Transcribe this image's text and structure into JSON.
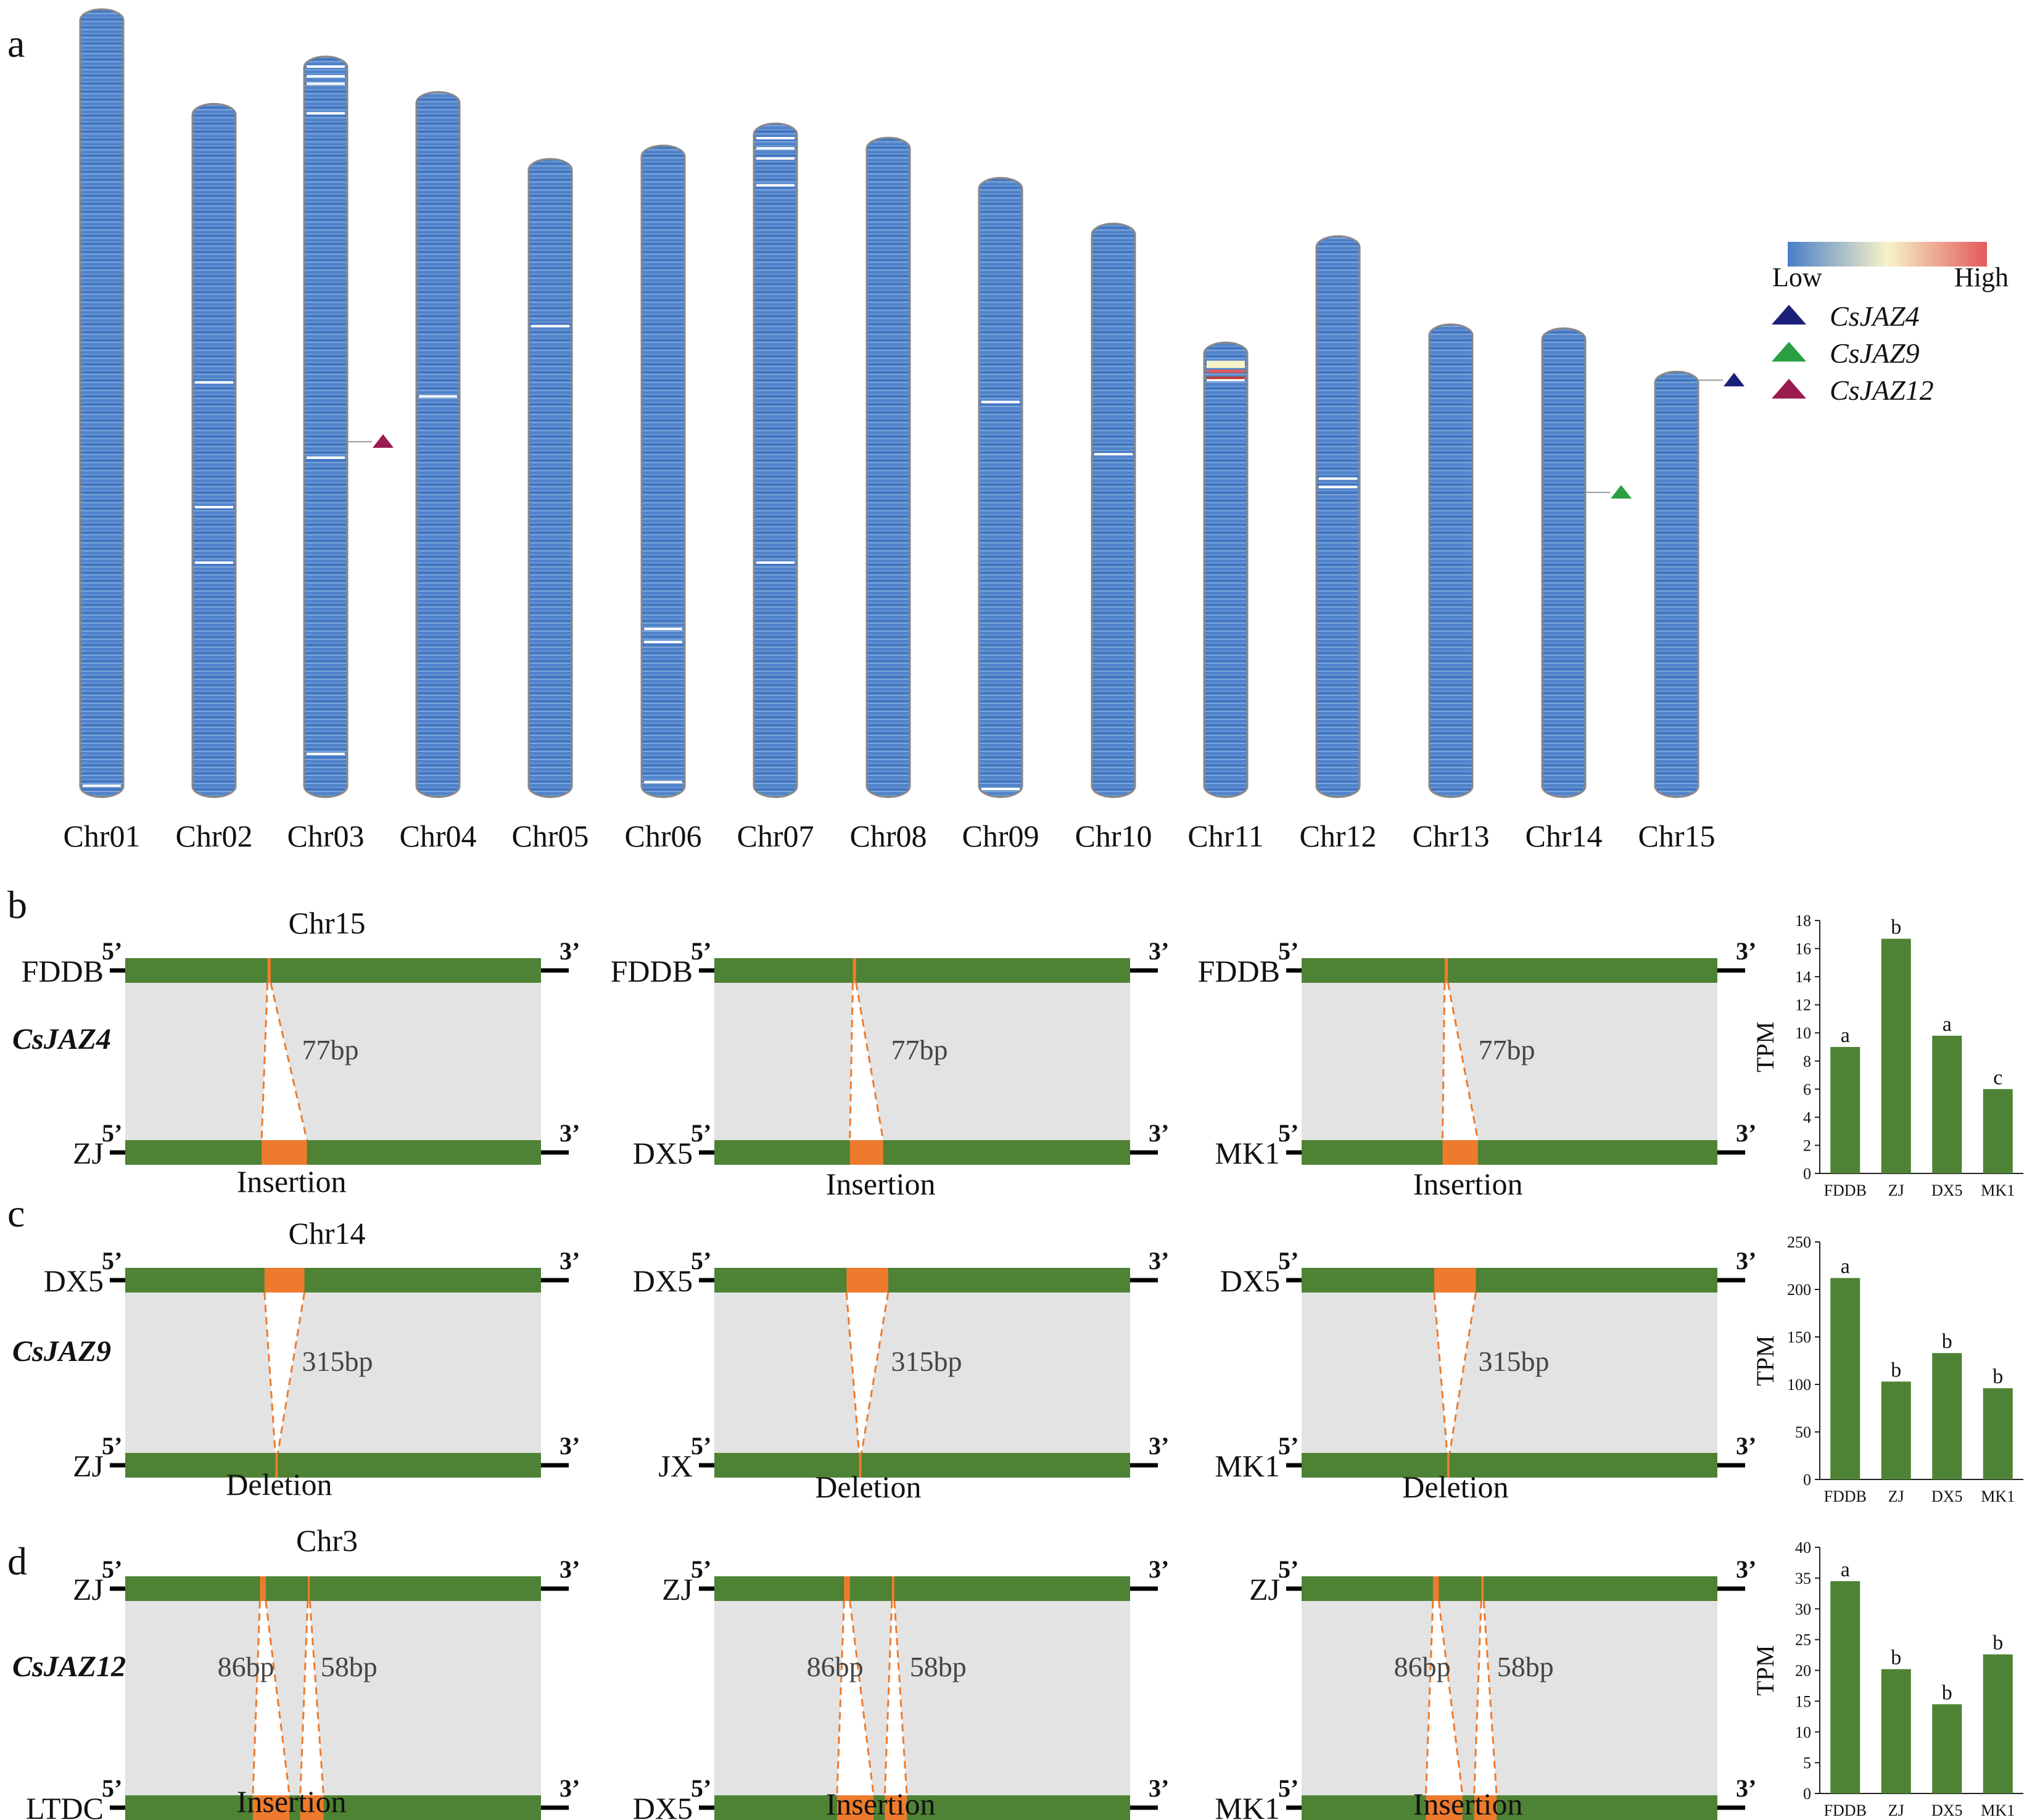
{
  "panel_labels": {
    "a": "a",
    "b": "b",
    "c": "c",
    "d": "d"
  },
  "chromosomes": [
    {
      "name": "Chr01",
      "length": 1.0,
      "bands": [
        0.984
      ]
    },
    {
      "name": "Chr02",
      "length": 0.88,
      "bands": [
        0.4,
        0.58,
        0.66
      ]
    },
    {
      "name": "Chr03",
      "length": 0.94,
      "bands": [
        0.012,
        0.025,
        0.035,
        0.075,
        0.54,
        0.94
      ]
    },
    {
      "name": "Chr04",
      "length": 0.895,
      "bands": [
        0.43
      ]
    },
    {
      "name": "Chr05",
      "length": 0.81,
      "bands": [
        0.26
      ]
    },
    {
      "name": "Chr06",
      "length": 0.827,
      "bands": [
        0.74,
        0.76,
        0.975
      ]
    },
    {
      "name": "Chr07",
      "length": 0.855,
      "bands": [
        0.02,
        0.035,
        0.05,
        0.09,
        0.65
      ]
    },
    {
      "name": "Chr08",
      "length": 0.837,
      "bands": []
    },
    {
      "name": "Chr09",
      "length": 0.786,
      "bands": [
        0.36,
        0.985
      ]
    },
    {
      "name": "Chr10",
      "length": 0.728,
      "bands": [
        0.4
      ]
    },
    {
      "name": "Chr11",
      "length": 0.577,
      "bands": [
        0.05,
        0.08
      ]
    },
    {
      "name": "Chr12",
      "length": 0.712,
      "bands": [
        0.43,
        0.445
      ]
    },
    {
      "name": "Chr13",
      "length": 0.6,
      "bands": []
    },
    {
      "name": "Chr14",
      "length": 0.595,
      "bands": []
    },
    {
      "name": "Chr15",
      "length": 0.54,
      "bands": []
    }
  ],
  "gene_markers": [
    {
      "gene": "CsJAZ4",
      "chromosome": "Chr15",
      "position": 0.02,
      "color": "#1a1f7a"
    },
    {
      "gene": "CsJAZ9",
      "chromosome": "Chr14",
      "position": 0.35,
      "color": "#2aa043"
    },
    {
      "gene": "CsJAZ12",
      "chromosome": "Chr03",
      "position": 0.52,
      "color": "#9b1b4e"
    }
  ],
  "colorbar": {
    "low_label": "Low",
    "high_label": "High",
    "colors": [
      "#4a7ec8",
      "#f7f3c8",
      "#e35a5a"
    ]
  },
  "legend": [
    {
      "label": "CsJAZ4",
      "color": "#1a1f7a"
    },
    {
      "label": "CsJAZ9",
      "color": "#2aa043"
    },
    {
      "label": "CsJAZ12",
      "color": "#9b1b4e"
    }
  ],
  "colors": {
    "chromosome": "#4a7ec8",
    "segment": "#4e8234",
    "indel": "#ee7b2d",
    "gray": "#e3e3e3",
    "bar": "#4e8234"
  },
  "end_labels": {
    "five": "5’",
    "three": "3’"
  },
  "rows": [
    {
      "chr_label": "Chr15",
      "gene": "CsJAZ4",
      "event_type": "Insertion",
      "pairs": [
        {
          "top": "FDDB",
          "bottom": "ZJ",
          "size": "77bp"
        },
        {
          "top": "FDDB",
          "bottom": "DX5",
          "size": "77bp"
        },
        {
          "top": "FDDB",
          "bottom": "MK1",
          "size": "77bp"
        }
      ]
    },
    {
      "chr_label": "Chr14",
      "gene": "CsJAZ9",
      "event_type": "Deletion",
      "pairs": [
        {
          "top": "DX5",
          "bottom": "ZJ",
          "size": "315bp"
        },
        {
          "top": "DX5",
          "bottom": "JX",
          "size": "315bp"
        },
        {
          "top": "DX5",
          "bottom": "MK1",
          "size": "315bp"
        }
      ]
    },
    {
      "chr_label": "Chr3",
      "gene": "CsJAZ12",
      "event_type": "Insertion",
      "pairs": [
        {
          "top": "ZJ",
          "bottom": "LTDC",
          "size": "86bp",
          "size2": "58bp"
        },
        {
          "top": "ZJ",
          "bottom": "DX5",
          "size": "86bp",
          "size2": "58bp"
        },
        {
          "top": "ZJ",
          "bottom": "MK1",
          "size": "86bp",
          "size2": "58bp"
        }
      ]
    }
  ],
  "chart_data": [
    {
      "type": "bar",
      "gene": "CsJAZ4",
      "ylabel": "TPM",
      "categories": [
        "FDDB",
        "ZJ",
        "DX5",
        "MK1"
      ],
      "values": [
        9.0,
        16.7,
        9.8,
        6.0
      ],
      "letters": [
        "a",
        "b",
        "a",
        "c"
      ],
      "ylim": [
        0,
        18
      ],
      "yticks": [
        "0",
        "2",
        "4",
        "6",
        "8",
        "10",
        "12",
        "14",
        "16",
        "18"
      ]
    },
    {
      "type": "bar",
      "gene": "CsJAZ9",
      "ylabel": "TPM",
      "categories": [
        "FDDB",
        "ZJ",
        "DX5",
        "MK1"
      ],
      "values": [
        212,
        103,
        133,
        96
      ],
      "letters": [
        "a",
        "b",
        "b",
        "b"
      ],
      "ylim": [
        0,
        250
      ],
      "yticks": [
        "0",
        "50",
        "100",
        "150",
        "200",
        "250"
      ]
    },
    {
      "type": "bar",
      "gene": "CsJAZ12",
      "ylabel": "TPM",
      "categories": [
        "FDDB",
        "ZJ",
        "DX5",
        "MK1"
      ],
      "values": [
        34.5,
        20.2,
        14.5,
        22.6
      ],
      "letters": [
        "a",
        "b",
        "b",
        "b"
      ],
      "ylim": [
        0,
        40
      ],
      "yticks": [
        "0",
        "5",
        "10",
        "15",
        "20",
        "25",
        "30",
        "35",
        "40"
      ]
    }
  ]
}
